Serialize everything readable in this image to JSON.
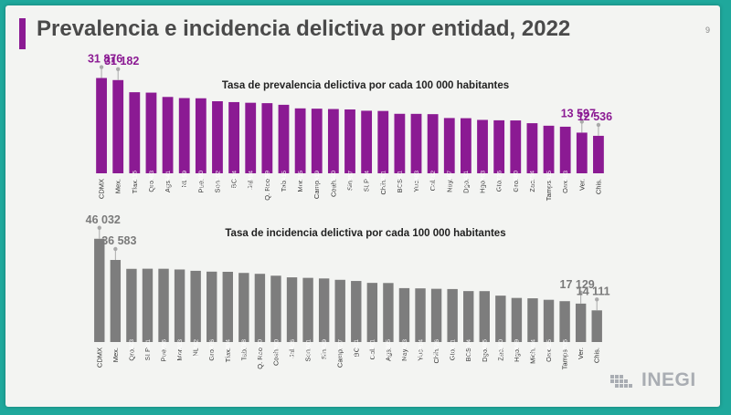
{
  "slide": {
    "title": "Prevalencia e incidencia delictiva por entidad, 2022",
    "page_number": "9",
    "logo_text": "INEGI"
  },
  "colors": {
    "background": "#1fa89c",
    "prevalence_bar": "#8b1a93",
    "incidence_bar": "#7d7d7d",
    "highlight_prev_label": "#8b1a93",
    "highlight_inc_label": "#7a7a7a"
  },
  "chart_data": [
    {
      "type": "bar",
      "title": "Tasa de prevalencia delictiva por cada 100 000 habitantes",
      "categories": [
        "CDMX",
        "Mex.",
        "Tlax.",
        "Qro.",
        "Ags.",
        "NL",
        "Pue.",
        "Son.",
        "BC",
        "Jal.",
        "Q. Roo",
        "Tab.",
        "Mor.",
        "Camp.",
        "Coah.",
        "Sin.",
        "SLP",
        "Chih.",
        "BCS",
        "Yuc.",
        "Col.",
        "Nay.",
        "Dgo.",
        "Hgo.",
        "Gto.",
        "Gro.",
        "Zac.",
        "Tamps.",
        "Oax.",
        "Ver.",
        "Chis."
      ],
      "values": [
        31876,
        31182,
        27115,
        26983,
        25541,
        25159,
        25090,
        24102,
        23814,
        23594,
        23459,
        22915,
        21715,
        21619,
        21500,
        21357,
        20924,
        20851,
        19901,
        19883,
        19782,
        18487,
        18431,
        17863,
        17726,
        17680,
        16754,
        15915,
        15583,
        13597,
        12536
      ],
      "value_labels": [
        "",
        "",
        "27 115",
        "26 983",
        "25 541",
        "25 159",
        "25 090",
        "24 102",
        "23 814",
        "23 594",
        "23 459",
        "22 915",
        "21 715",
        "21 619",
        "21 500",
        "21 357",
        "20 924",
        "20 851",
        "19 901",
        "19 883",
        "19 782",
        "18 487",
        "18 431",
        "17 863",
        "17 726",
        "17 680",
        "16 754",
        "15 915",
        "15 583",
        "",
        ""
      ],
      "highlights": [
        {
          "index": 0,
          "label": "31 876"
        },
        {
          "index": 1,
          "label": "31 182"
        },
        {
          "index": 29,
          "label": "13 597"
        },
        {
          "index": 30,
          "label": "12 536"
        }
      ],
      "ylim": [
        0,
        36000
      ]
    },
    {
      "type": "bar",
      "title": "Tasa de incidencia delictiva por cada 100 000 habitantes",
      "categories": [
        "CDMX",
        "Mex.",
        "Qro.",
        "SLP",
        "Pue.",
        "Mor.",
        "NL",
        "Gro.",
        "Tlax.",
        "Tab.",
        "Q. Roo",
        "Coah.",
        "Jal.",
        "Son.",
        "Sin.",
        "Camp.",
        "BC",
        "Col.",
        "Ags.",
        "Nay.",
        "Yuc.",
        "Chih.",
        "Gto.",
        "BCS",
        "Dgo.",
        "Zac.",
        "Hgo.",
        "Mich.",
        "Oax.",
        "Tamps.",
        "Ver.",
        "Chis."
      ],
      "values": [
        46032,
        36583,
        32623,
        32681,
        32656,
        32333,
        31742,
        31376,
        31304,
        30798,
        30400,
        29560,
        28826,
        28601,
        28329,
        27727,
        27211,
        26361,
        26305,
        24023,
        23914,
        23726,
        23611,
        22704,
        22685,
        20680,
        19649,
        19484,
        18825,
        18205,
        17129,
        14111
      ],
      "value_labels": [
        "",
        "",
        "32 623",
        "32 681",
        "32 656",
        "32 333",
        "31 742",
        "31 376",
        "31 304",
        "30 798",
        "30 400",
        "29 560",
        "28 826",
        "28 601",
        "28 329",
        "27 727",
        "27 211",
        "26 361",
        "26 305",
        "24 023",
        "23 914",
        "23 726",
        "23 611",
        "22 704",
        "22 685",
        "20 680",
        "19 649",
        "19 484",
        "18 825",
        "18 205",
        "",
        ""
      ],
      "highlights": [
        {
          "index": 0,
          "label": "46 032"
        },
        {
          "index": 1,
          "label": "36 583"
        },
        {
          "index": 30,
          "label": "17 129"
        },
        {
          "index": 31,
          "label": "14 111"
        }
      ],
      "ylim": [
        0,
        50000
      ]
    }
  ]
}
